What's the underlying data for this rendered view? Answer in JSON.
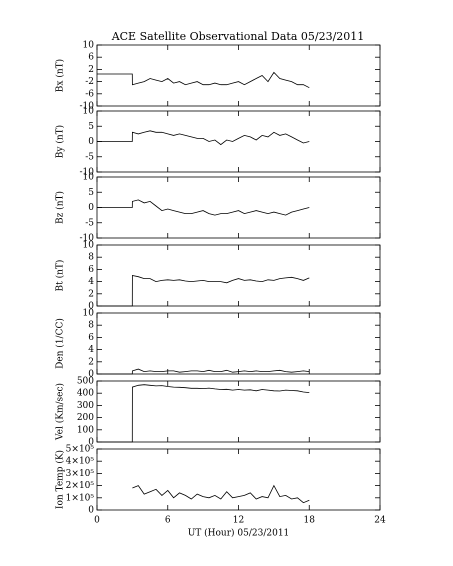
{
  "title": "ACE Satellite Observational Data   05/23/2011",
  "chart_data": [
    {
      "type": "line",
      "ylabel": "Bx (nT)",
      "xlim": [
        0,
        24
      ],
      "xticks": [
        0,
        6,
        12,
        18,
        24
      ],
      "ylim": [
        -10,
        10
      ],
      "yticks": [
        -10,
        -6,
        -2,
        2,
        6,
        10
      ],
      "x": [
        0,
        2.99,
        3,
        3.5,
        4,
        4.5,
        5,
        5.5,
        6,
        6.5,
        7,
        7.5,
        8,
        8.5,
        9,
        9.5,
        10,
        10.5,
        11,
        11.5,
        12,
        12.5,
        13,
        13.5,
        14,
        14.5,
        15,
        15.5,
        16,
        16.5,
        17,
        17.5,
        18
      ],
      "series": [
        {
          "color": "#000000",
          "values": [
            0.5,
            0.5,
            -3,
            -2.5,
            -2,
            -1,
            -1.5,
            -2,
            -1,
            -2.5,
            -2,
            -3,
            -2.5,
            -2,
            -3,
            -3,
            -2.5,
            -3,
            -3,
            -2.5,
            -2,
            -3,
            -2,
            -1,
            0,
            -2,
            1,
            -1,
            -1.5,
            -2,
            -3,
            -3,
            -4
          ]
        }
      ]
    },
    {
      "type": "line",
      "ylabel": "By (nT)",
      "xlim": [
        0,
        24
      ],
      "xticks": [
        0,
        6,
        12,
        18,
        24
      ],
      "ylim": [
        -10,
        10
      ],
      "yticks": [
        -10,
        -5,
        0,
        5,
        10
      ],
      "x": [
        0,
        2.99,
        3,
        3.5,
        4,
        4.5,
        5,
        5.5,
        6,
        6.5,
        7,
        7.5,
        8,
        8.5,
        9,
        9.5,
        10,
        10.5,
        11,
        11.5,
        12,
        12.5,
        13,
        13.5,
        14,
        14.5,
        15,
        15.5,
        16,
        16.5,
        17,
        17.5,
        18
      ],
      "series": [
        {
          "color": "#000000",
          "values": [
            0,
            0,
            3,
            2.5,
            3,
            3.5,
            3,
            3,
            2.5,
            2,
            2.5,
            2,
            1.5,
            1,
            1,
            0,
            0.5,
            -1,
            0.5,
            0,
            1,
            2,
            1.5,
            0.5,
            2,
            1.5,
            3,
            2,
            2.5,
            1.5,
            0.5,
            -0.5,
            0
          ]
        }
      ]
    },
    {
      "type": "line",
      "ylabel": "Bz (nT)",
      "xlim": [
        0,
        24
      ],
      "xticks": [
        0,
        6,
        12,
        18,
        24
      ],
      "ylim": [
        -10,
        10
      ],
      "yticks": [
        -10,
        -5,
        0,
        5,
        10
      ],
      "x": [
        0,
        2.99,
        3,
        3.5,
        4,
        4.5,
        5,
        5.5,
        6,
        6.5,
        7,
        7.5,
        8,
        8.5,
        9,
        9.5,
        10,
        10.5,
        11,
        11.5,
        12,
        12.5,
        13,
        13.5,
        14,
        14.5,
        15,
        15.5,
        16,
        16.5,
        17,
        17.5,
        18
      ],
      "series": [
        {
          "color": "#000000",
          "values": [
            0,
            0,
            2,
            2.5,
            1.5,
            2,
            0.5,
            -1,
            -0.5,
            -1,
            -1.5,
            -2,
            -2,
            -1.5,
            -1,
            -2,
            -2.5,
            -2,
            -2,
            -1.5,
            -1,
            -2,
            -1.5,
            -1,
            -1.5,
            -2,
            -1.5,
            -2,
            -2.5,
            -1.5,
            -1,
            -0.5,
            0
          ]
        }
      ]
    },
    {
      "type": "line",
      "ylabel": "Bt (nT)",
      "xlim": [
        0,
        24
      ],
      "xticks": [
        0,
        6,
        12,
        18,
        24
      ],
      "ylim": [
        0,
        10
      ],
      "yticks": [
        0,
        2,
        4,
        6,
        8,
        10
      ],
      "x": [
        0,
        2.99,
        3,
        3.5,
        4,
        4.5,
        5,
        5.5,
        6,
        6.5,
        7,
        7.5,
        8,
        8.5,
        9,
        9.5,
        10,
        10.5,
        11,
        11.5,
        12,
        12.5,
        13,
        13.5,
        14,
        14.5,
        15,
        15.5,
        16,
        16.5,
        17,
        17.5,
        18
      ],
      "series": [
        {
          "color": "#000000",
          "values": [
            0,
            0,
            5,
            4.8,
            4.5,
            4.5,
            4,
            4.2,
            4.3,
            4.2,
            4.3,
            4.1,
            4,
            4.1,
            4.2,
            4,
            4,
            4,
            3.8,
            4.2,
            4.5,
            4.2,
            4.3,
            4.1,
            4,
            4.3,
            4.2,
            4.5,
            4.6,
            4.7,
            4.5,
            4.2,
            4.6
          ]
        }
      ]
    },
    {
      "type": "line",
      "ylabel": "Den (1/CC)",
      "xlim": [
        0,
        24
      ],
      "xticks": [
        0,
        6,
        12,
        18,
        24
      ],
      "ylim": [
        0,
        10
      ],
      "yticks": [
        0,
        2,
        4,
        6,
        8,
        10
      ],
      "x": [
        0,
        2.99,
        3,
        3.5,
        4,
        4.5,
        5,
        5.5,
        6,
        6.5,
        7,
        7.5,
        8,
        8.5,
        9,
        9.5,
        10,
        10.5,
        11,
        11.5,
        12,
        12.5,
        13,
        13.5,
        14,
        14.5,
        15,
        15.5,
        16,
        16.5,
        17,
        17.5,
        18
      ],
      "series": [
        {
          "color": "#000000",
          "values": [
            0,
            0,
            0.5,
            0.8,
            0.4,
            0.5,
            0.4,
            0.4,
            0.5,
            0.5,
            0.3,
            0.4,
            0.5,
            0.5,
            0.4,
            0.6,
            0.4,
            0.4,
            0.6,
            0.3,
            0.4,
            0.5,
            0.4,
            0.5,
            0.4,
            0.4,
            0.5,
            0.6,
            0.4,
            0.3,
            0.4,
            0.5,
            0.4
          ]
        }
      ]
    },
    {
      "type": "line",
      "ylabel": "Vel (Km/sec)",
      "xlim": [
        0,
        24
      ],
      "xticks": [
        0,
        6,
        12,
        18,
        24
      ],
      "ylim": [
        0,
        500
      ],
      "yticks": [
        0,
        100,
        200,
        300,
        400,
        500
      ],
      "x": [
        0,
        2.99,
        3,
        3.5,
        4,
        4.5,
        5,
        5.5,
        6,
        6.5,
        7,
        7.5,
        8,
        8.5,
        9,
        9.5,
        10,
        10.5,
        11,
        11.5,
        12,
        12.5,
        13,
        13.5,
        14,
        14.5,
        15,
        15.5,
        16,
        16.5,
        17,
        17.5,
        18
      ],
      "series": [
        {
          "color": "#000000",
          "values": [
            0,
            0,
            450,
            465,
            470,
            465,
            460,
            462,
            455,
            450,
            448,
            445,
            440,
            440,
            438,
            442,
            435,
            430,
            432,
            425,
            430,
            425,
            428,
            420,
            430,
            425,
            420,
            418,
            425,
            422,
            420,
            410,
            405
          ]
        }
      ]
    },
    {
      "type": "line",
      "ylabel": "Ion Temp (K)",
      "xlabel": "UT (Hour)  05/23/2011",
      "xlim": [
        0,
        24
      ],
      "xticks": [
        0,
        6,
        12,
        18,
        24
      ],
      "ylim": [
        0,
        500000
      ],
      "yticks": [
        0,
        {
          "value": 100000,
          "label": "1×10⁵"
        },
        {
          "value": 200000,
          "label": "2×10⁵"
        },
        {
          "value": 300000,
          "label": "3×10⁵"
        },
        {
          "value": 400000,
          "label": "4×10⁵"
        },
        {
          "value": 500000,
          "label": "5×10⁵"
        }
      ],
      "x": [
        0,
        2.99,
        3,
        3.5,
        4,
        4.5,
        5,
        5.5,
        6,
        6.5,
        7,
        7.5,
        8,
        8.5,
        9,
        9.5,
        10,
        10.5,
        11,
        11.5,
        12,
        12.5,
        13,
        13.5,
        14,
        14.5,
        15,
        15.5,
        16,
        16.5,
        17,
        17.5,
        18
      ],
      "series": [
        {
          "color": "#000000",
          "values": [
            null,
            null,
            180000,
            200000,
            130000,
            150000,
            170000,
            120000,
            160000,
            100000,
            140000,
            120000,
            90000,
            130000,
            110000,
            100000,
            120000,
            90000,
            150000,
            100000,
            110000,
            120000,
            140000,
            90000,
            110000,
            100000,
            200000,
            110000,
            120000,
            90000,
            100000,
            60000,
            80000
          ]
        }
      ]
    }
  ]
}
